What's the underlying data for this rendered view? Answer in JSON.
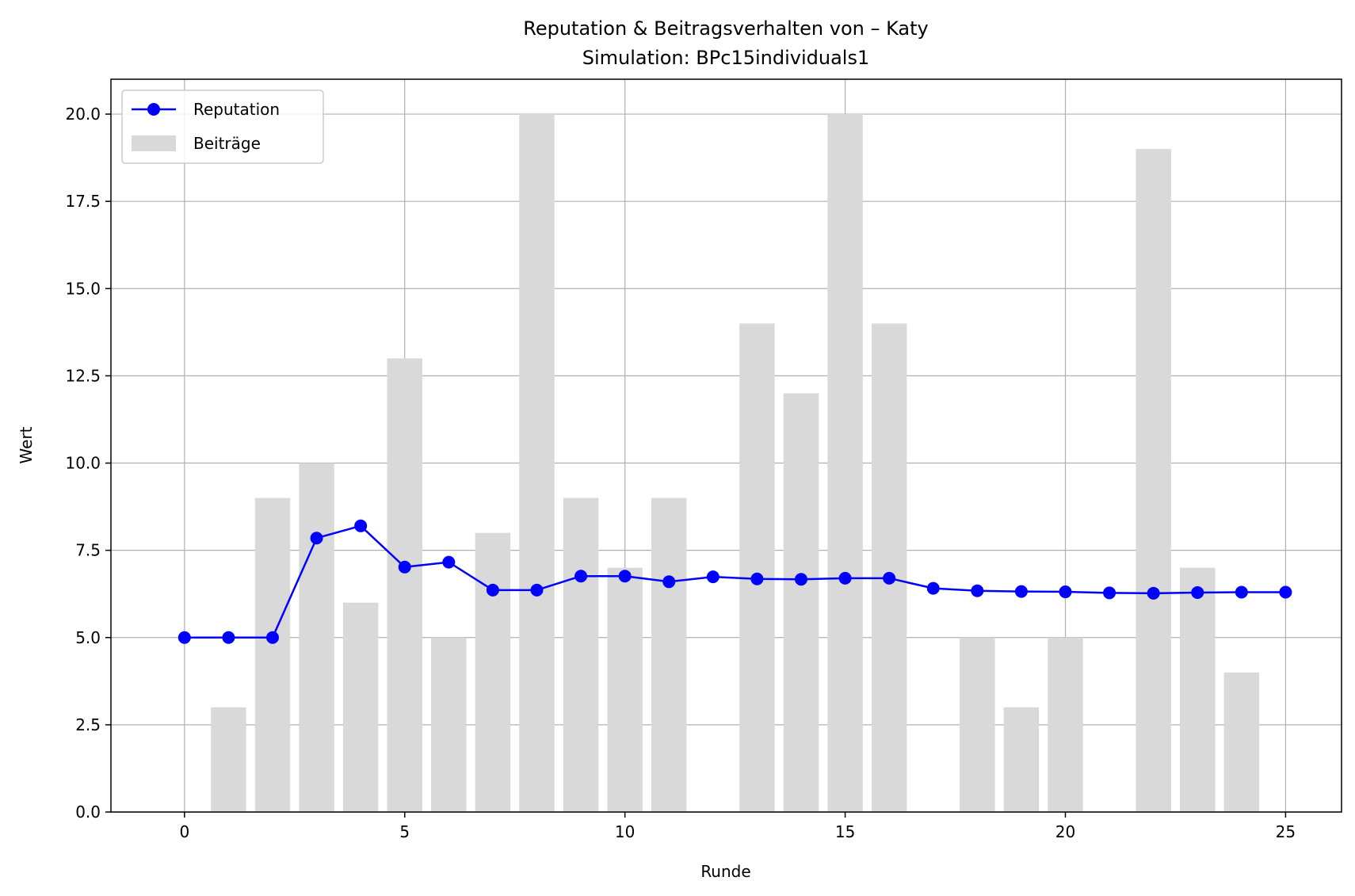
{
  "chart_data": {
    "type": "bar+line",
    "title": "Reputation & Beitragsverhalten von – Katy",
    "subtitle": "Simulation: BPc15individuals1",
    "xlabel": "Runde",
    "ylabel": "Wert",
    "xlim": [
      -1.67,
      26.27
    ],
    "ylim": [
      0,
      21
    ],
    "xticks": [
      0,
      5,
      10,
      15,
      20,
      25
    ],
    "yticks": [
      0.0,
      2.5,
      5.0,
      7.5,
      10.0,
      12.5,
      15.0,
      17.5,
      20.0
    ],
    "grid": true,
    "legend_position": "top-left",
    "x": [
      0,
      1,
      2,
      3,
      4,
      5,
      6,
      7,
      8,
      9,
      10,
      11,
      12,
      13,
      14,
      15,
      16,
      17,
      18,
      19,
      20,
      21,
      22,
      23,
      24,
      25
    ],
    "series": [
      {
        "name": "Reputation",
        "kind": "line",
        "color": "#0000ff",
        "values": [
          5.0,
          5.0,
          5.0,
          7.85,
          8.2,
          7.02,
          7.16,
          6.36,
          6.36,
          6.76,
          6.76,
          6.6,
          6.74,
          6.68,
          6.67,
          6.7,
          6.7,
          6.41,
          6.34,
          6.32,
          6.31,
          6.28,
          6.27,
          6.29,
          6.3,
          6.3
        ]
      },
      {
        "name": "Beiträge",
        "kind": "bar",
        "color": "#d9d9d9",
        "values": [
          0,
          3,
          9,
          10,
          6,
          13,
          5,
          8,
          20,
          9,
          7,
          9,
          0,
          14,
          12,
          20,
          14,
          0,
          5,
          3,
          5,
          0,
          19,
          7,
          4,
          0
        ]
      }
    ]
  }
}
